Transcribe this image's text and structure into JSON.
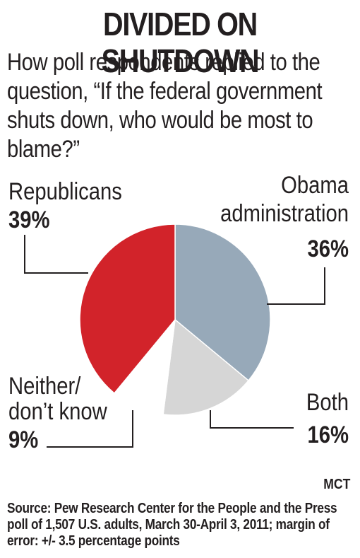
{
  "title": "DIVIDED ON SHUTDOWN",
  "subtitle": "How poll respondents replied to the question, “If the federal government shuts down, who  would be most to blame?”",
  "credit": "MCT",
  "source": "Source: Pew Research Center for the People and the Press poll of 1,507 U.S. adults, March 30-April 3, 2011; margin of error: +/- 3.5 percentage points",
  "colors": {
    "republicans": "#d2232a",
    "obama": "#97a9b9",
    "both": "#d6d6d6",
    "neither": "#ffffff",
    "text": "#231f20"
  },
  "chart_data": {
    "type": "pie",
    "title": "DIVIDED ON SHUTDOWN",
    "unit": "%",
    "slices": [
      {
        "key": "obama",
        "lines": [
          "Obama",
          "administration"
        ],
        "label_text": "36%",
        "value": 36
      },
      {
        "key": "both",
        "lines": [
          "Both"
        ],
        "label_text": "16%",
        "value": 16
      },
      {
        "key": "neither",
        "lines": [
          "Neither/",
          "don’t know"
        ],
        "label_text": "9%",
        "value": 9
      },
      {
        "key": "republicans",
        "lines": [
          "Republicans"
        ],
        "label_text": "39%",
        "value": 39
      }
    ]
  }
}
